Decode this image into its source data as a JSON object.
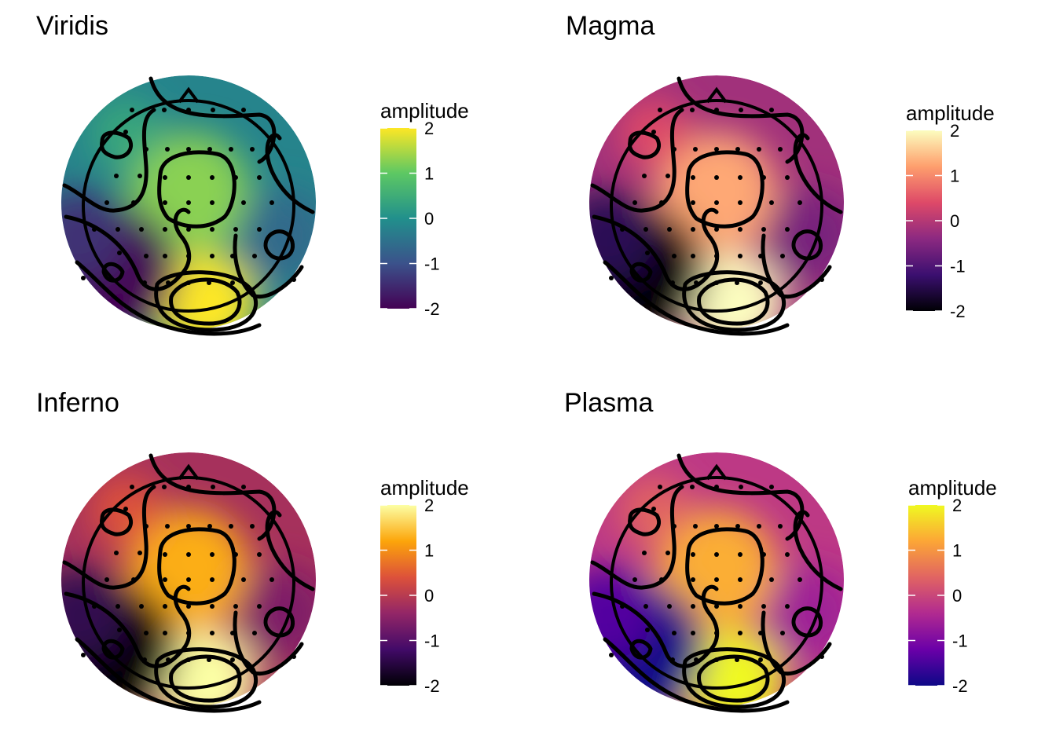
{
  "chart_data": [
    {
      "type": "heatmap",
      "title": "Viridis",
      "legend": {
        "title": "amplitude",
        "placement": "right",
        "range": [
          -2,
          2
        ],
        "ticks": [
          "2",
          "1",
          "0",
          "-1",
          "-2"
        ]
      },
      "colormap": [
        "#440154",
        "#3b528b",
        "#21908c",
        "#5dc863",
        "#fde725"
      ]
    },
    {
      "type": "heatmap",
      "title": "Magma",
      "legend": {
        "title": "amplitude",
        "placement": "right",
        "range": [
          -2,
          2
        ],
        "ticks": [
          "2",
          "1",
          "0",
          "-1",
          "-2"
        ]
      },
      "colormap": [
        "#000004",
        "#3b0f70",
        "#8c2981",
        "#de4968",
        "#fe9f6d",
        "#fcfdbf"
      ]
    },
    {
      "type": "heatmap",
      "title": "Inferno",
      "legend": {
        "title": "amplitude",
        "placement": "right",
        "range": [
          -2,
          2
        ],
        "ticks": [
          "2",
          "1",
          "0",
          "-1",
          "-2"
        ]
      },
      "colormap": [
        "#000004",
        "#420a68",
        "#932667",
        "#dd513a",
        "#fca50a",
        "#fcffa4"
      ]
    },
    {
      "type": "heatmap",
      "title": "Plasma",
      "legend": {
        "title": "amplitude",
        "placement": "right",
        "range": [
          -2,
          2
        ],
        "ticks": [
          "2",
          "1",
          "0",
          "-1",
          "-2"
        ]
      },
      "colormap": [
        "#0d0887",
        "#6a00a8",
        "#b12a90",
        "#e16462",
        "#fca636",
        "#f0f921"
      ]
    }
  ]
}
